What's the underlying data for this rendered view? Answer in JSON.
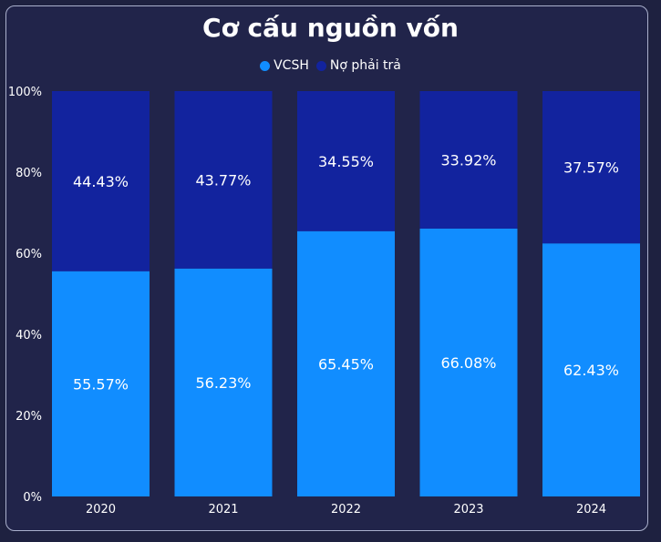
{
  "chart_data": {
    "type": "bar",
    "stacked": true,
    "title": "Cơ cấu nguồn vốn",
    "categories": [
      "2020",
      "2021",
      "2022",
      "2023",
      "2024"
    ],
    "series": [
      {
        "name": "VCSH",
        "values": [
          55.57,
          56.23,
          65.45,
          66.08,
          62.43
        ],
        "color": "#118dff",
        "labels": [
          "55.57%",
          "56.23%",
          "65.45%",
          "66.08%",
          "62.43%"
        ]
      },
      {
        "name": "Nợ phải trả",
        "values": [
          44.43,
          43.77,
          34.55,
          33.92,
          37.57
        ],
        "color": "#12239e",
        "labels": [
          "44.43%",
          "43.77%",
          "34.55%",
          "33.92%",
          "37.57%"
        ]
      }
    ],
    "yticks": [
      "0%",
      "20%",
      "40%",
      "60%",
      "80%",
      "100%"
    ],
    "ylim": [
      0,
      100
    ],
    "legend": "top-center",
    "grid": false
  }
}
